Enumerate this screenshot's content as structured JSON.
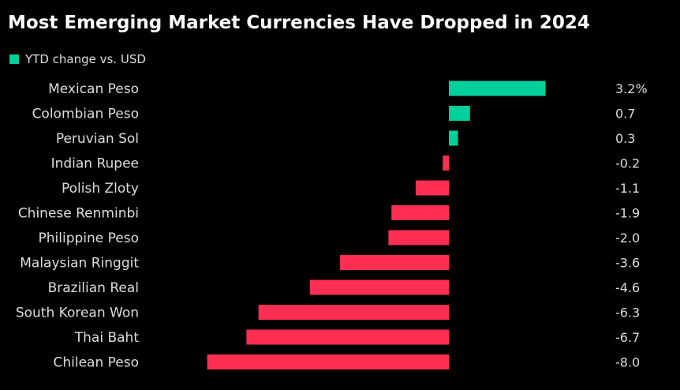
{
  "colors": {
    "background": "#000000",
    "positive": "#00d09c",
    "negative": "#ff2e52",
    "text": "#dcdcdc",
    "title": "#ffffff"
  },
  "chart_data": {
    "type": "bar",
    "orientation": "horizontal",
    "title": "Most Emerging Market Currencies Have Dropped in 2024",
    "legend": [
      {
        "label": "YTD change vs. USD",
        "color": "#00d09c"
      }
    ],
    "legend_placement": "top-left",
    "categories": [
      "Mexican Peso",
      "Colombian Peso",
      "Peruvian Sol",
      "Indian Rupee",
      "Polish Zloty",
      "Chinese Renminbi",
      "Philippine Peso",
      "Malaysian Ringgit",
      "Brazilian Real",
      "South Korean Won",
      "Thai Baht",
      "Chilean Peso"
    ],
    "values": [
      3.2,
      0.7,
      0.3,
      -0.2,
      -1.1,
      -1.9,
      -2.0,
      -3.6,
      -4.6,
      -6.3,
      -6.7,
      -8.0
    ],
    "value_labels": [
      "3.2%",
      "0.7",
      "0.3",
      "-0.2",
      "-1.1",
      "-1.9",
      "-2.0",
      "-3.6",
      "-4.6",
      "-6.3",
      "-6.7",
      "-8.0"
    ],
    "xlim": [
      -8.0,
      3.2
    ],
    "xlabel": "",
    "ylabel": "",
    "grid": false
  }
}
